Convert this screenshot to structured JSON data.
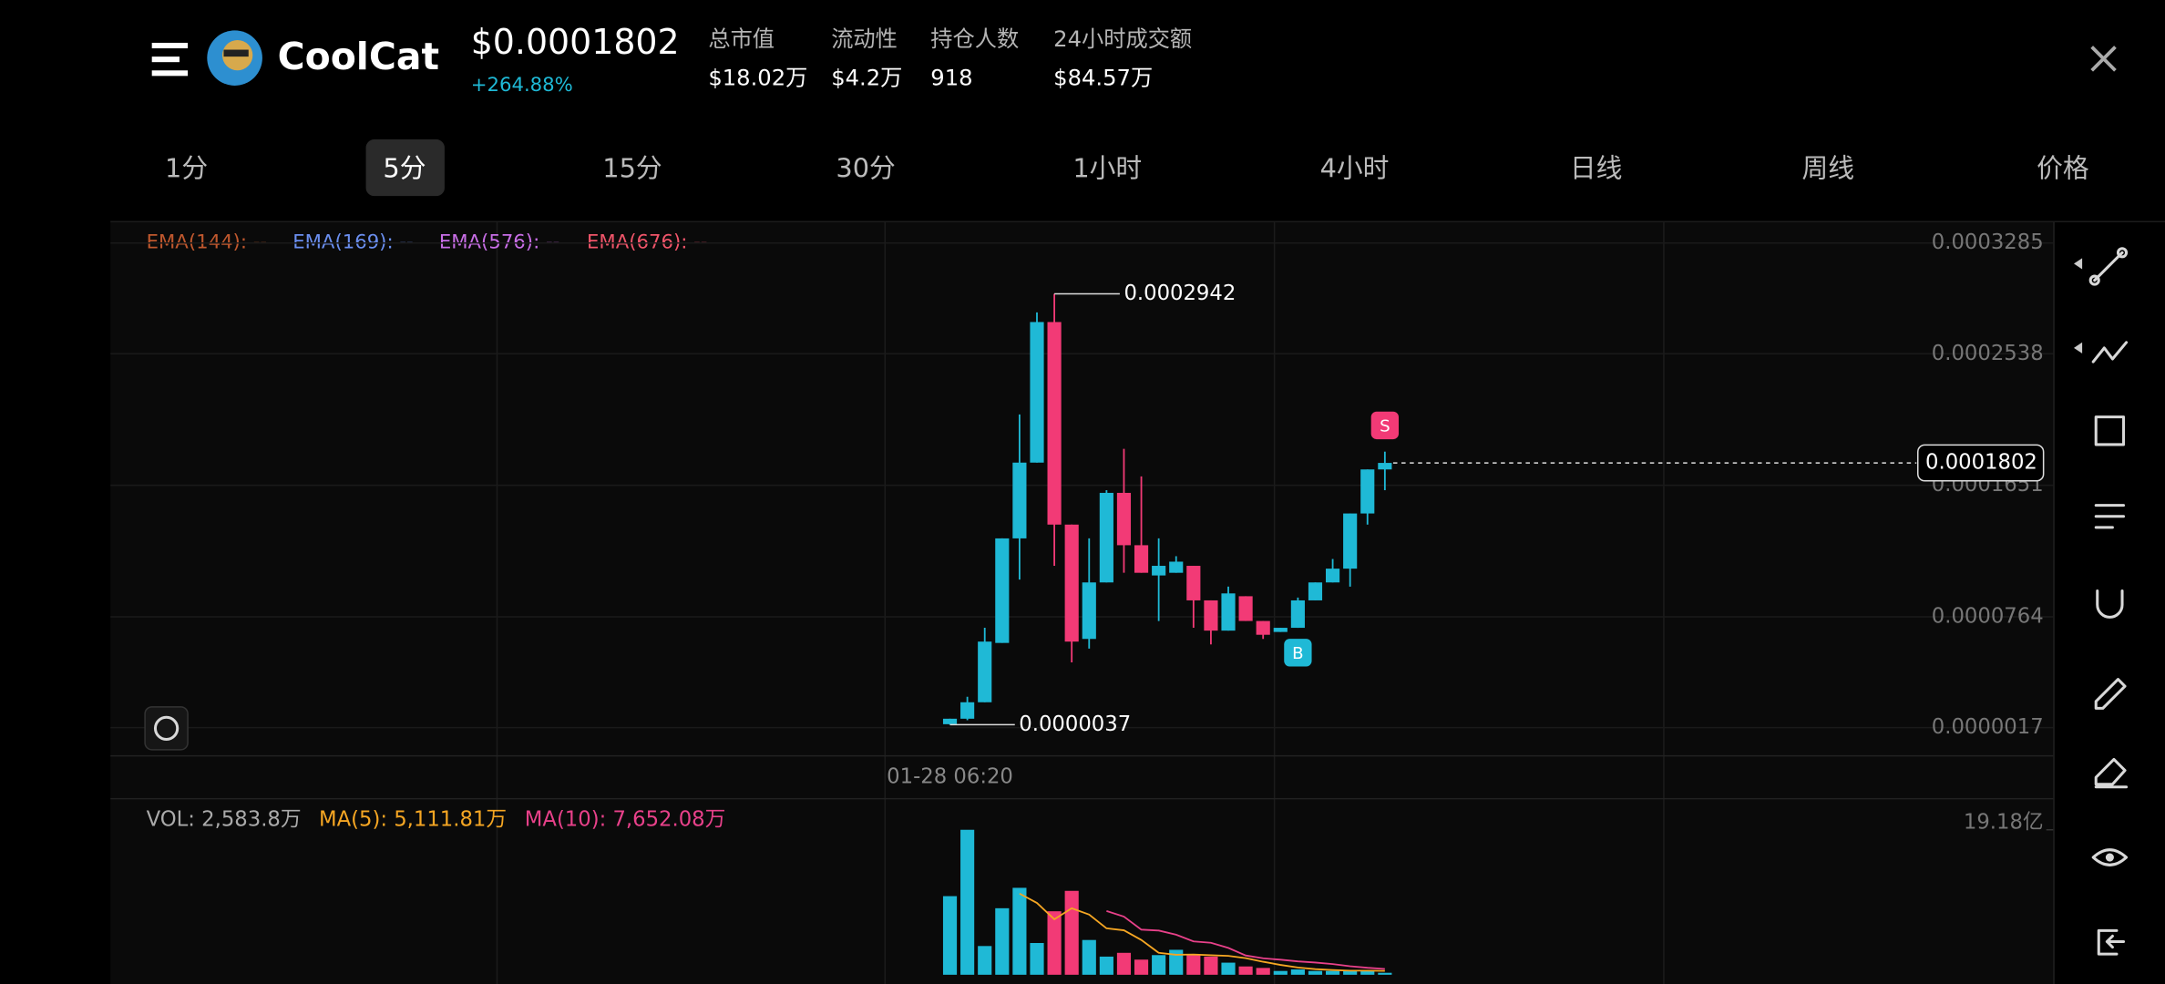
{
  "header": {
    "name": "CoolCat",
    "price": "$0.0001802",
    "change": "+264.88%",
    "stats": [
      {
        "label": "总市值",
        "value": "$18.02万"
      },
      {
        "label": "流动性",
        "value": "$4.2万"
      },
      {
        "label": "持仓人数",
        "value": "918"
      },
      {
        "label": "24小时成交额",
        "value": "$84.57万"
      }
    ]
  },
  "timeframes": [
    {
      "label": "1分",
      "selected": false
    },
    {
      "label": "5分",
      "selected": true
    },
    {
      "label": "15分",
      "selected": false
    },
    {
      "label": "30分",
      "selected": false
    },
    {
      "label": "1小时",
      "selected": false
    },
    {
      "label": "4小时",
      "selected": false
    },
    {
      "label": "日线",
      "selected": false
    },
    {
      "label": "周线",
      "selected": false
    },
    {
      "label": "价格",
      "selected": false
    }
  ],
  "indicators": [
    {
      "label": "EMA(144): --",
      "color": "#c0582e"
    },
    {
      "label": "EMA(169): --",
      "color": "#6b8ff0"
    },
    {
      "label": "EMA(576): --",
      "color": "#c86ee6"
    },
    {
      "label": "EMA(676): --",
      "color": "#f0556a"
    }
  ],
  "chart_data": [
    {
      "type": "candlestick",
      "up_color": "#1fb9d6",
      "down_color": "#f23a76",
      "categories": [
        "01-28 06:20",
        null,
        null,
        null,
        null,
        null,
        null,
        null,
        null,
        null,
        null,
        null,
        null,
        null,
        null,
        null,
        null,
        null,
        null,
        null,
        null,
        null,
        null,
        null,
        null,
        null
      ],
      "open": [
        4e-06,
        7.7e-06,
        1.88e-05,
        5.88e-05,
        0.0001293,
        0.0001804,
        0.0002752,
        0.0001386,
        6.15e-05,
        9.96e-05,
        0.00016,
        0.0001247,
        0.0001043,
        0.0001061,
        0.0001108,
        8.75e-05,
        6.71e-05,
        9.03e-05,
        7.36e-05,
        6.62e-05,
        6.9e-05,
        8.75e-05,
        9.96e-05,
        0.0001089,
        0.0001461,
        0.0001758
      ],
      "high": [
        7.7e-06,
        2.25e-05,
        6.9e-05,
        0.0001293,
        0.0002129,
        0.0002817,
        0.0002942,
        0.0001386,
        0.0001293,
        0.0001618,
        0.0001897,
        0.0001711,
        0.0001293,
        0.0001173,
        0.0001108,
        8.75e-05,
        9.68e-05,
        9.03e-05,
        7.36e-05,
        6.9e-05,
        8.94e-05,
        9.96e-05,
        0.0001154,
        0.0001461,
        0.0001758,
        0.0001878
      ],
      "low": [
        3.7e-06,
        6.7e-06,
        1.88e-05,
        5.88e-05,
        0.0001015,
        0.0001804,
        0.0001108,
        4.57e-05,
        5.5e-05,
        9.96e-05,
        0.0001061,
        0.0001061,
        7.36e-05,
        0.0001061,
        6.9e-05,
        5.78e-05,
        6.71e-05,
        7.36e-05,
        6.15e-05,
        6.62e-05,
        6.9e-05,
        8.75e-05,
        9.96e-05,
        9.68e-05,
        0.0001386,
        0.0001618
      ],
      "close": [
        7.7e-06,
        1.88e-05,
        5.97e-05,
        0.0001293,
        0.0001804,
        0.0002752,
        0.0001386,
        5.97e-05,
        9.96e-05,
        0.00016,
        0.0001247,
        0.0001061,
        0.0001108,
        0.0001136,
        8.75e-05,
        6.71e-05,
        9.22e-05,
        7.36e-05,
        6.43e-05,
        6.9e-05,
        8.75e-05,
        9.96e-05,
        0.0001089,
        0.0001461,
        0.0001758,
        0.0001802
      ],
      "ylim": [
        1.7e-06,
        0.0003285
      ],
      "yticks": [
        0.0003285,
        0.0002538,
        0.0001651,
        7.64e-05,
        1.7e-06
      ],
      "high_label": "0.0002942",
      "low_label": "0.0000037",
      "last_label": "0.0001802",
      "signals": [
        {
          "index": 25,
          "text": "S"
        },
        {
          "index": 20,
          "text": "B"
        }
      ]
    },
    {
      "type": "bar",
      "series": [
        {
          "name": "VOL",
          "label": "VOL: 2,583.8万",
          "color": "#aaaaaa",
          "values": [
            10.4,
            19.18,
            3.8,
            8.8,
            11.5,
            4.2,
            8.4,
            11.1,
            4.6,
            2.4,
            2.9,
            2.0,
            2.6,
            3.3,
            2.6,
            2.4,
            1.6,
            1.1,
            0.9,
            0.5,
            0.7,
            0.5,
            0.5,
            0.5,
            0.5,
            0.2584
          ]
        },
        {
          "name": "MA(5)",
          "label": "MA(5): 5,111.81万",
          "color": "#f5a623",
          "values": [
            null,
            null,
            null,
            null,
            10.74,
            9.5,
            7.34,
            8.8,
            7.96,
            6.14,
            5.88,
            4.6,
            2.9,
            2.64,
            2.68,
            2.58,
            2.5,
            2.2,
            1.72,
            1.3,
            0.96,
            0.74,
            0.62,
            0.54,
            0.54,
            0.5112
          ]
        },
        {
          "name": "MA(10)",
          "label": "MA(10): 7,652.08万",
          "color": "#e8418a",
          "values": [
            null,
            null,
            null,
            null,
            null,
            null,
            null,
            null,
            null,
            8.44,
            7.69,
            5.97,
            5.85,
            5.3,
            4.41,
            4.23,
            3.55,
            2.55,
            2.18,
            1.99,
            1.77,
            1.62,
            1.41,
            1.13,
            0.92,
            0.7652
          ]
        }
      ],
      "ylim": [
        0,
        19.18
      ],
      "yticks": [
        {
          "value": 19.18,
          "label": "19.18亿"
        }
      ]
    }
  ]
}
